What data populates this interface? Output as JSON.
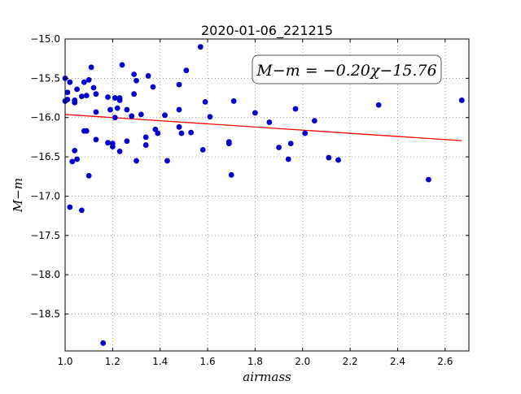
{
  "chart_data": {
    "type": "scatter",
    "title": "2020-01-06_221215",
    "xlabel": "airmass",
    "ylabel": "M−m",
    "xlim": [
      1.0,
      2.7
    ],
    "ylim": [
      -15.0,
      -18.97
    ],
    "y_inverted": true,
    "grid": true,
    "xticks": [
      "1.0",
      "1.2",
      "1.4",
      "1.6",
      "1.8",
      "2.0",
      "2.2",
      "2.4",
      "2.6"
    ],
    "yticks": [
      "−15.0",
      "−15.5",
      "−16.0",
      "−16.5",
      "−17.0",
      "−17.5",
      "−18.0",
      "−18.5"
    ],
    "annotation": "M−m = −0.20χ−15.76",
    "colors": {
      "points": "#0000cc",
      "fit_line": "#ff0000",
      "grid": "#808080"
    },
    "fit": {
      "slope": -0.2,
      "intercept": -15.76,
      "x_range": [
        1.0,
        2.67
      ]
    },
    "points": [
      {
        "x": 1.0,
        "y": -15.5
      },
      {
        "x": 1.0,
        "y": -15.79
      },
      {
        "x": 1.01,
        "y": -15.77
      },
      {
        "x": 1.01,
        "y": -15.68
      },
      {
        "x": 1.02,
        "y": -15.55
      },
      {
        "x": 1.02,
        "y": -17.14
      },
      {
        "x": 1.03,
        "y": -16.56
      },
      {
        "x": 1.04,
        "y": -16.42
      },
      {
        "x": 1.04,
        "y": -15.81
      },
      {
        "x": 1.04,
        "y": -15.78
      },
      {
        "x": 1.05,
        "y": -15.64
      },
      {
        "x": 1.05,
        "y": -16.53
      },
      {
        "x": 1.07,
        "y": -15.73
      },
      {
        "x": 1.07,
        "y": -17.18
      },
      {
        "x": 1.08,
        "y": -16.17
      },
      {
        "x": 1.08,
        "y": -15.55
      },
      {
        "x": 1.09,
        "y": -15.72
      },
      {
        "x": 1.09,
        "y": -16.17
      },
      {
        "x": 1.1,
        "y": -15.52
      },
      {
        "x": 1.1,
        "y": -16.74
      },
      {
        "x": 1.11,
        "y": -15.36
      },
      {
        "x": 1.12,
        "y": -15.62
      },
      {
        "x": 1.13,
        "y": -15.7
      },
      {
        "x": 1.13,
        "y": -15.93
      },
      {
        "x": 1.13,
        "y": -16.28
      },
      {
        "x": 1.16,
        "y": -18.87
      },
      {
        "x": 1.18,
        "y": -15.74
      },
      {
        "x": 1.18,
        "y": -16.32
      },
      {
        "x": 1.19,
        "y": -15.9
      },
      {
        "x": 1.2,
        "y": -16.33
      },
      {
        "x": 1.2,
        "y": -16.37
      },
      {
        "x": 1.21,
        "y": -16.0
      },
      {
        "x": 1.21,
        "y": -15.75
      },
      {
        "x": 1.22,
        "y": -15.88
      },
      {
        "x": 1.23,
        "y": -15.75
      },
      {
        "x": 1.23,
        "y": -15.78
      },
      {
        "x": 1.23,
        "y": -16.43
      },
      {
        "x": 1.24,
        "y": -15.33
      },
      {
        "x": 1.26,
        "y": -15.9
      },
      {
        "x": 1.26,
        "y": -16.3
      },
      {
        "x": 1.28,
        "y": -15.98
      },
      {
        "x": 1.29,
        "y": -15.7
      },
      {
        "x": 1.29,
        "y": -15.45
      },
      {
        "x": 1.3,
        "y": -16.55
      },
      {
        "x": 1.3,
        "y": -15.53
      },
      {
        "x": 1.32,
        "y": -15.96
      },
      {
        "x": 1.34,
        "y": -16.35
      },
      {
        "x": 1.34,
        "y": -16.25
      },
      {
        "x": 1.35,
        "y": -15.47
      },
      {
        "x": 1.37,
        "y": -15.61
      },
      {
        "x": 1.38,
        "y": -16.15
      },
      {
        "x": 1.39,
        "y": -16.2
      },
      {
        "x": 1.42,
        "y": -15.97
      },
      {
        "x": 1.43,
        "y": -16.55
      },
      {
        "x": 1.48,
        "y": -16.12
      },
      {
        "x": 1.48,
        "y": -15.58
      },
      {
        "x": 1.48,
        "y": -15.9
      },
      {
        "x": 1.49,
        "y": -16.2
      },
      {
        "x": 1.51,
        "y": -15.4
      },
      {
        "x": 1.53,
        "y": -16.19
      },
      {
        "x": 1.57,
        "y": -15.1
      },
      {
        "x": 1.58,
        "y": -16.41
      },
      {
        "x": 1.59,
        "y": -15.8
      },
      {
        "x": 1.61,
        "y": -15.99
      },
      {
        "x": 1.69,
        "y": -16.33
      },
      {
        "x": 1.69,
        "y": -16.31
      },
      {
        "x": 1.7,
        "y": -16.73
      },
      {
        "x": 1.71,
        "y": -15.79
      },
      {
        "x": 1.8,
        "y": -15.94
      },
      {
        "x": 1.86,
        "y": -16.06
      },
      {
        "x": 1.9,
        "y": -16.38
      },
      {
        "x": 1.94,
        "y": -16.53
      },
      {
        "x": 1.95,
        "y": -16.33
      },
      {
        "x": 1.97,
        "y": -15.89
      },
      {
        "x": 2.01,
        "y": -16.2
      },
      {
        "x": 2.05,
        "y": -16.04
      },
      {
        "x": 2.11,
        "y": -16.51
      },
      {
        "x": 2.15,
        "y": -16.54
      },
      {
        "x": 2.32,
        "y": -15.84
      },
      {
        "x": 2.53,
        "y": -16.79
      },
      {
        "x": 2.67,
        "y": -15.78
      }
    ]
  }
}
